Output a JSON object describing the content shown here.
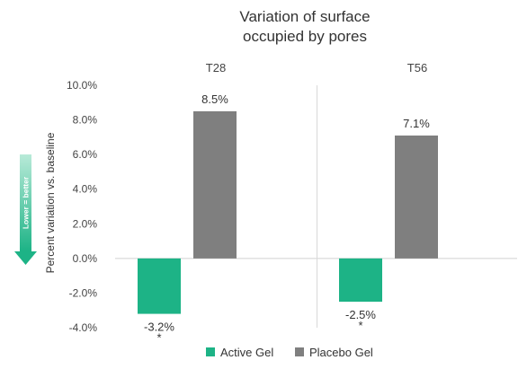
{
  "chart_data": {
    "type": "bar",
    "title_lines": [
      "Variation of surface",
      "occupied by pores"
    ],
    "ylabel": "Percent variation vs. baseline",
    "ylim": [
      -4,
      10
    ],
    "ytick_values": [
      -4,
      -2,
      0,
      2,
      4,
      6,
      8,
      10
    ],
    "ytick_labels": [
      "-4.0%",
      "-2.0%",
      "0.0%",
      "2.0%",
      "4.0%",
      "6.0%",
      "8.0%",
      "10.0%"
    ],
    "panels": [
      "T28",
      "T56"
    ],
    "series": [
      {
        "name": "Active Gel",
        "color": "#1db386",
        "values": [
          -3.2,
          -2.5
        ],
        "labels": [
          "-3.2%",
          "-2.5%"
        ],
        "markers": [
          "*",
          "*"
        ]
      },
      {
        "name": "Placebo Gel",
        "color": "#7f7f7f",
        "values": [
          8.5,
          7.1
        ],
        "labels": [
          "8.5%",
          "7.1%"
        ],
        "markers": [
          "",
          ""
        ]
      }
    ],
    "direction_hint": "Lower = better",
    "grid": false,
    "legend_position": "bottom"
  }
}
